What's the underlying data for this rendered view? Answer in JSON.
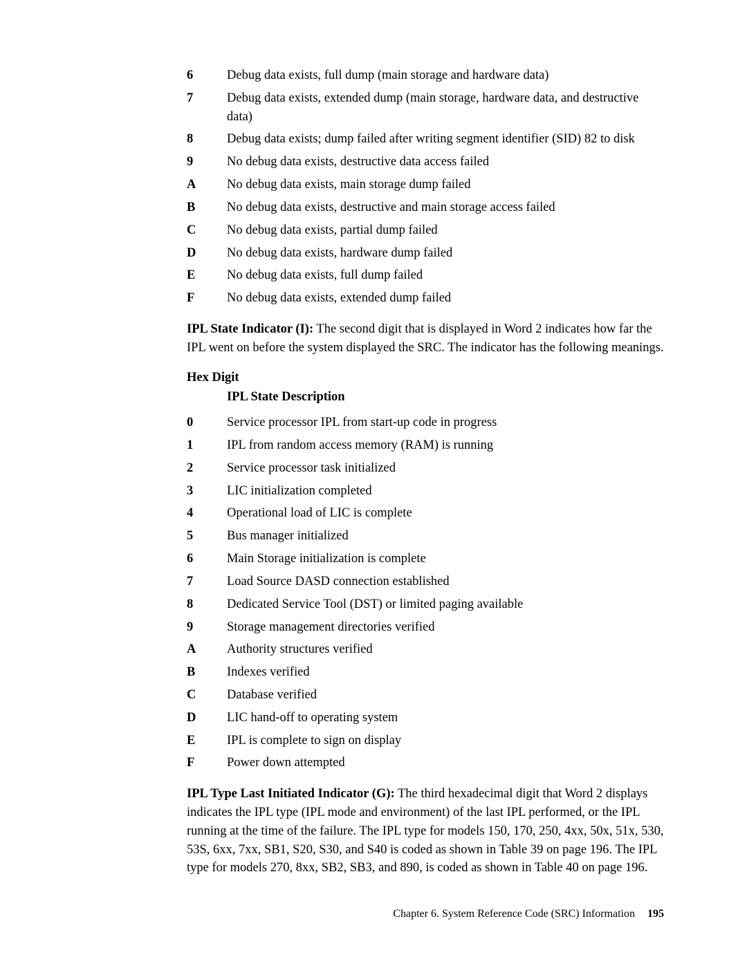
{
  "list1": [
    {
      "k": "6",
      "v": "Debug data exists, full dump (main storage and hardware data)"
    },
    {
      "k": "7",
      "v": "Debug data exists, extended dump (main storage, hardware data, and destructive data)"
    },
    {
      "k": "8",
      "v": "Debug data exists; dump failed after writing segment identifier (SID) 82 to disk"
    },
    {
      "k": "9",
      "v": "No debug data exists, destructive data access failed"
    },
    {
      "k": "A",
      "v": "No debug data exists, main storage dump failed"
    },
    {
      "k": "B",
      "v": "No debug data exists, destructive and main storage access failed"
    },
    {
      "k": "C",
      "v": "No debug data exists, partial dump failed"
    },
    {
      "k": "D",
      "v": "No debug data exists, hardware dump failed"
    },
    {
      "k": "E",
      "v": "No debug data exists, full dump failed"
    },
    {
      "k": "F",
      "v": "No debug data exists, extended dump failed"
    }
  ],
  "para1": {
    "runin": "IPL State Indicator (I):",
    "rest": "   The second digit that is displayed in Word 2 indicates how far the IPL went on before the system displayed the SRC. The indicator has the following meanings."
  },
  "hexHeader": {
    "line1": "Hex Digit",
    "line2": "IPL State Description"
  },
  "list2": [
    {
      "k": "0",
      "v": "Service processor IPL from start-up code in progress"
    },
    {
      "k": "1",
      "v": "IPL from random access memory (RAM) is running"
    },
    {
      "k": "2",
      "v": "Service processor task initialized"
    },
    {
      "k": "3",
      "v": "LIC initialization completed"
    },
    {
      "k": "4",
      "v": "Operational load of LIC is complete"
    },
    {
      "k": "5",
      "v": "Bus manager initialized"
    },
    {
      "k": "6",
      "v": "Main Storage initialization is complete"
    },
    {
      "k": "7",
      "v": "Load Source DASD connection established"
    },
    {
      "k": "8",
      "v": "Dedicated Service Tool (DST) or limited paging available"
    },
    {
      "k": "9",
      "v": "Storage management directories verified"
    },
    {
      "k": "A",
      "v": "Authority structures verified"
    },
    {
      "k": "B",
      "v": "Indexes verified"
    },
    {
      "k": "C",
      "v": "Database verified"
    },
    {
      "k": "D",
      "v": "LIC hand-off to operating system"
    },
    {
      "k": "E",
      "v": "IPL is complete to sign on display"
    },
    {
      "k": "F",
      "v": "Power down attempted"
    }
  ],
  "para2": {
    "runin": "IPL Type Last Initiated Indicator (G):",
    "rest": "   The third hexadecimal digit that Word 2 displays indicates the IPL type (IPL mode and environment) of the last IPL performed, or the IPL running at the time of the failure. The IPL type for models 150, 170, 250, 4xx, 50x, 51x, 530, 53S, 6xx, 7xx, SB1, S20, S30, and S40 is coded as shown in Table 39 on page 196. The IPL type for models 270, 8xx, SB2, SB3, and 890, is coded as shown in Table 40 on page 196."
  },
  "footer": {
    "chapter": "Chapter 6. System Reference Code (SRC) Information",
    "page": "195"
  }
}
